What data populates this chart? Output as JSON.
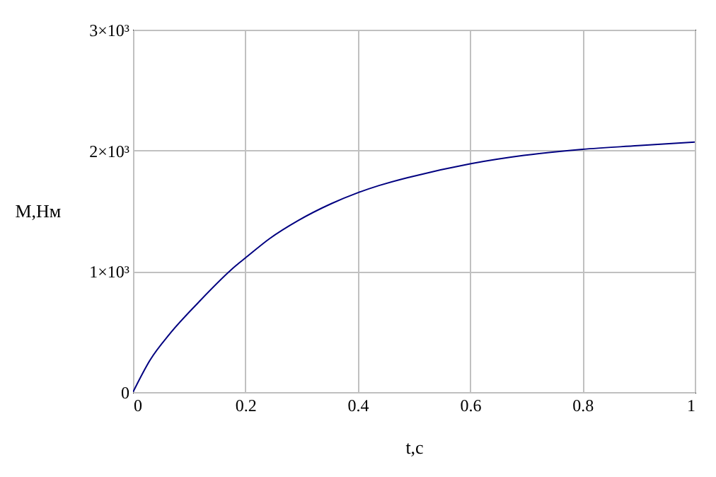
{
  "chart_data": {
    "type": "line",
    "xlabel": "t,c",
    "ylabel": "M,Нм",
    "x": [
      0,
      0.031,
      0.065,
      0.116,
      0.184,
      0.2,
      0.243,
      0.294,
      0.353,
      0.4,
      0.438,
      0.493,
      0.6,
      0.696,
      0.8,
      0.899,
      1
    ],
    "series": [
      {
        "color": "#000080",
        "values": [
          0,
          270,
          480,
          740,
          1050,
          1110,
          1270,
          1420,
          1560,
          1650,
          1710,
          1780,
          1890,
          1960,
          2010,
          2040,
          2070
        ]
      }
    ],
    "xlim": [
      0,
      1
    ],
    "xticks": [
      0,
      0.2,
      0.4,
      0.6,
      0.8,
      1
    ],
    "ylim": [
      0,
      3000
    ],
    "yticks": [
      0,
      {
        "value": 1000,
        "label": "1×10³"
      },
      {
        "value": 2000,
        "label": "2×10³"
      },
      {
        "value": 3000,
        "label": "3×10³"
      }
    ],
    "grid": true,
    "marker": "none",
    "line_style": "solid"
  }
}
